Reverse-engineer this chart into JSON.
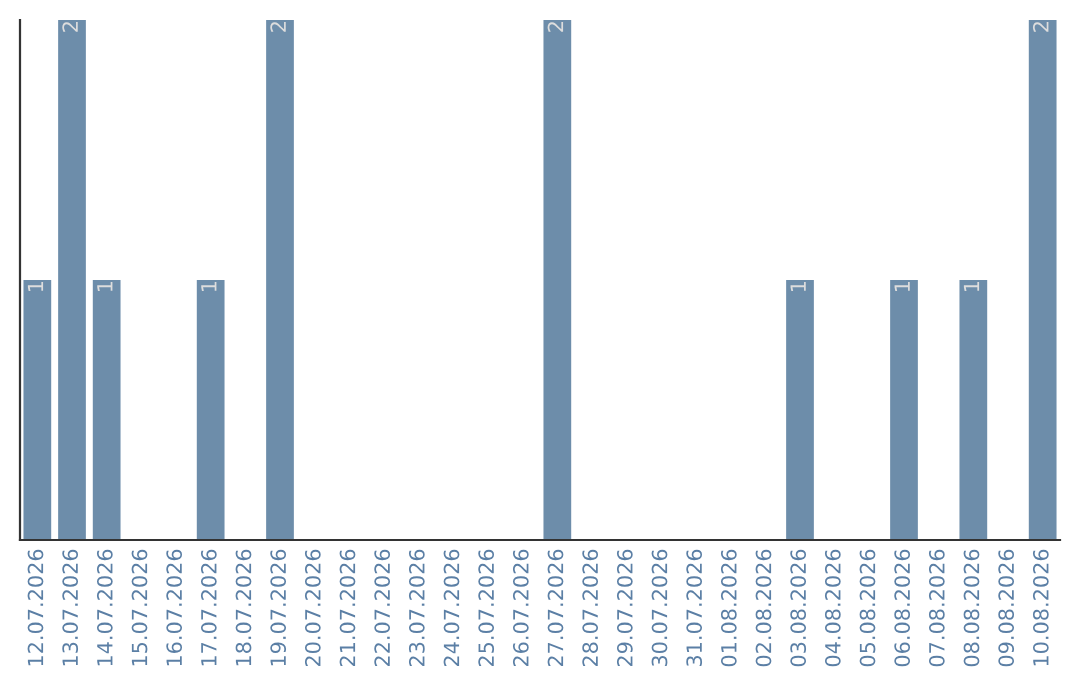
{
  "chart_data": {
    "type": "bar",
    "categories": [
      "12.07.2026",
      "13.07.2026",
      "14.07.2026",
      "15.07.2026",
      "16.07.2026",
      "17.07.2026",
      "18.07.2026",
      "19.07.2026",
      "20.07.2026",
      "21.07.2026",
      "22.07.2026",
      "23.07.2026",
      "24.07.2026",
      "25.07.2026",
      "26.07.2026",
      "27.07.2026",
      "28.07.2026",
      "29.07.2026",
      "30.07.2026",
      "31.07.2026",
      "01.08.2026",
      "02.08.2026",
      "03.08.2026",
      "04.08.2026",
      "05.08.2026",
      "06.08.2026",
      "07.08.2026",
      "08.08.2026",
      "09.08.2026",
      "10.08.2026"
    ],
    "values": [
      1,
      2,
      1,
      0,
      0,
      1,
      0,
      2,
      0,
      0,
      0,
      0,
      0,
      0,
      0,
      2,
      0,
      0,
      0,
      0,
      0,
      0,
      1,
      0,
      0,
      1,
      0,
      1,
      0,
      2
    ],
    "value_labels": [
      "1",
      "2",
      "1",
      null,
      null,
      "1",
      null,
      "2",
      null,
      null,
      null,
      null,
      null,
      null,
      null,
      "2",
      null,
      null,
      null,
      null,
      null,
      null,
      "1",
      null,
      null,
      "1",
      null,
      "1",
      null,
      "2"
    ],
    "color": "#6d8daa",
    "grid": false,
    "legend": false
  }
}
